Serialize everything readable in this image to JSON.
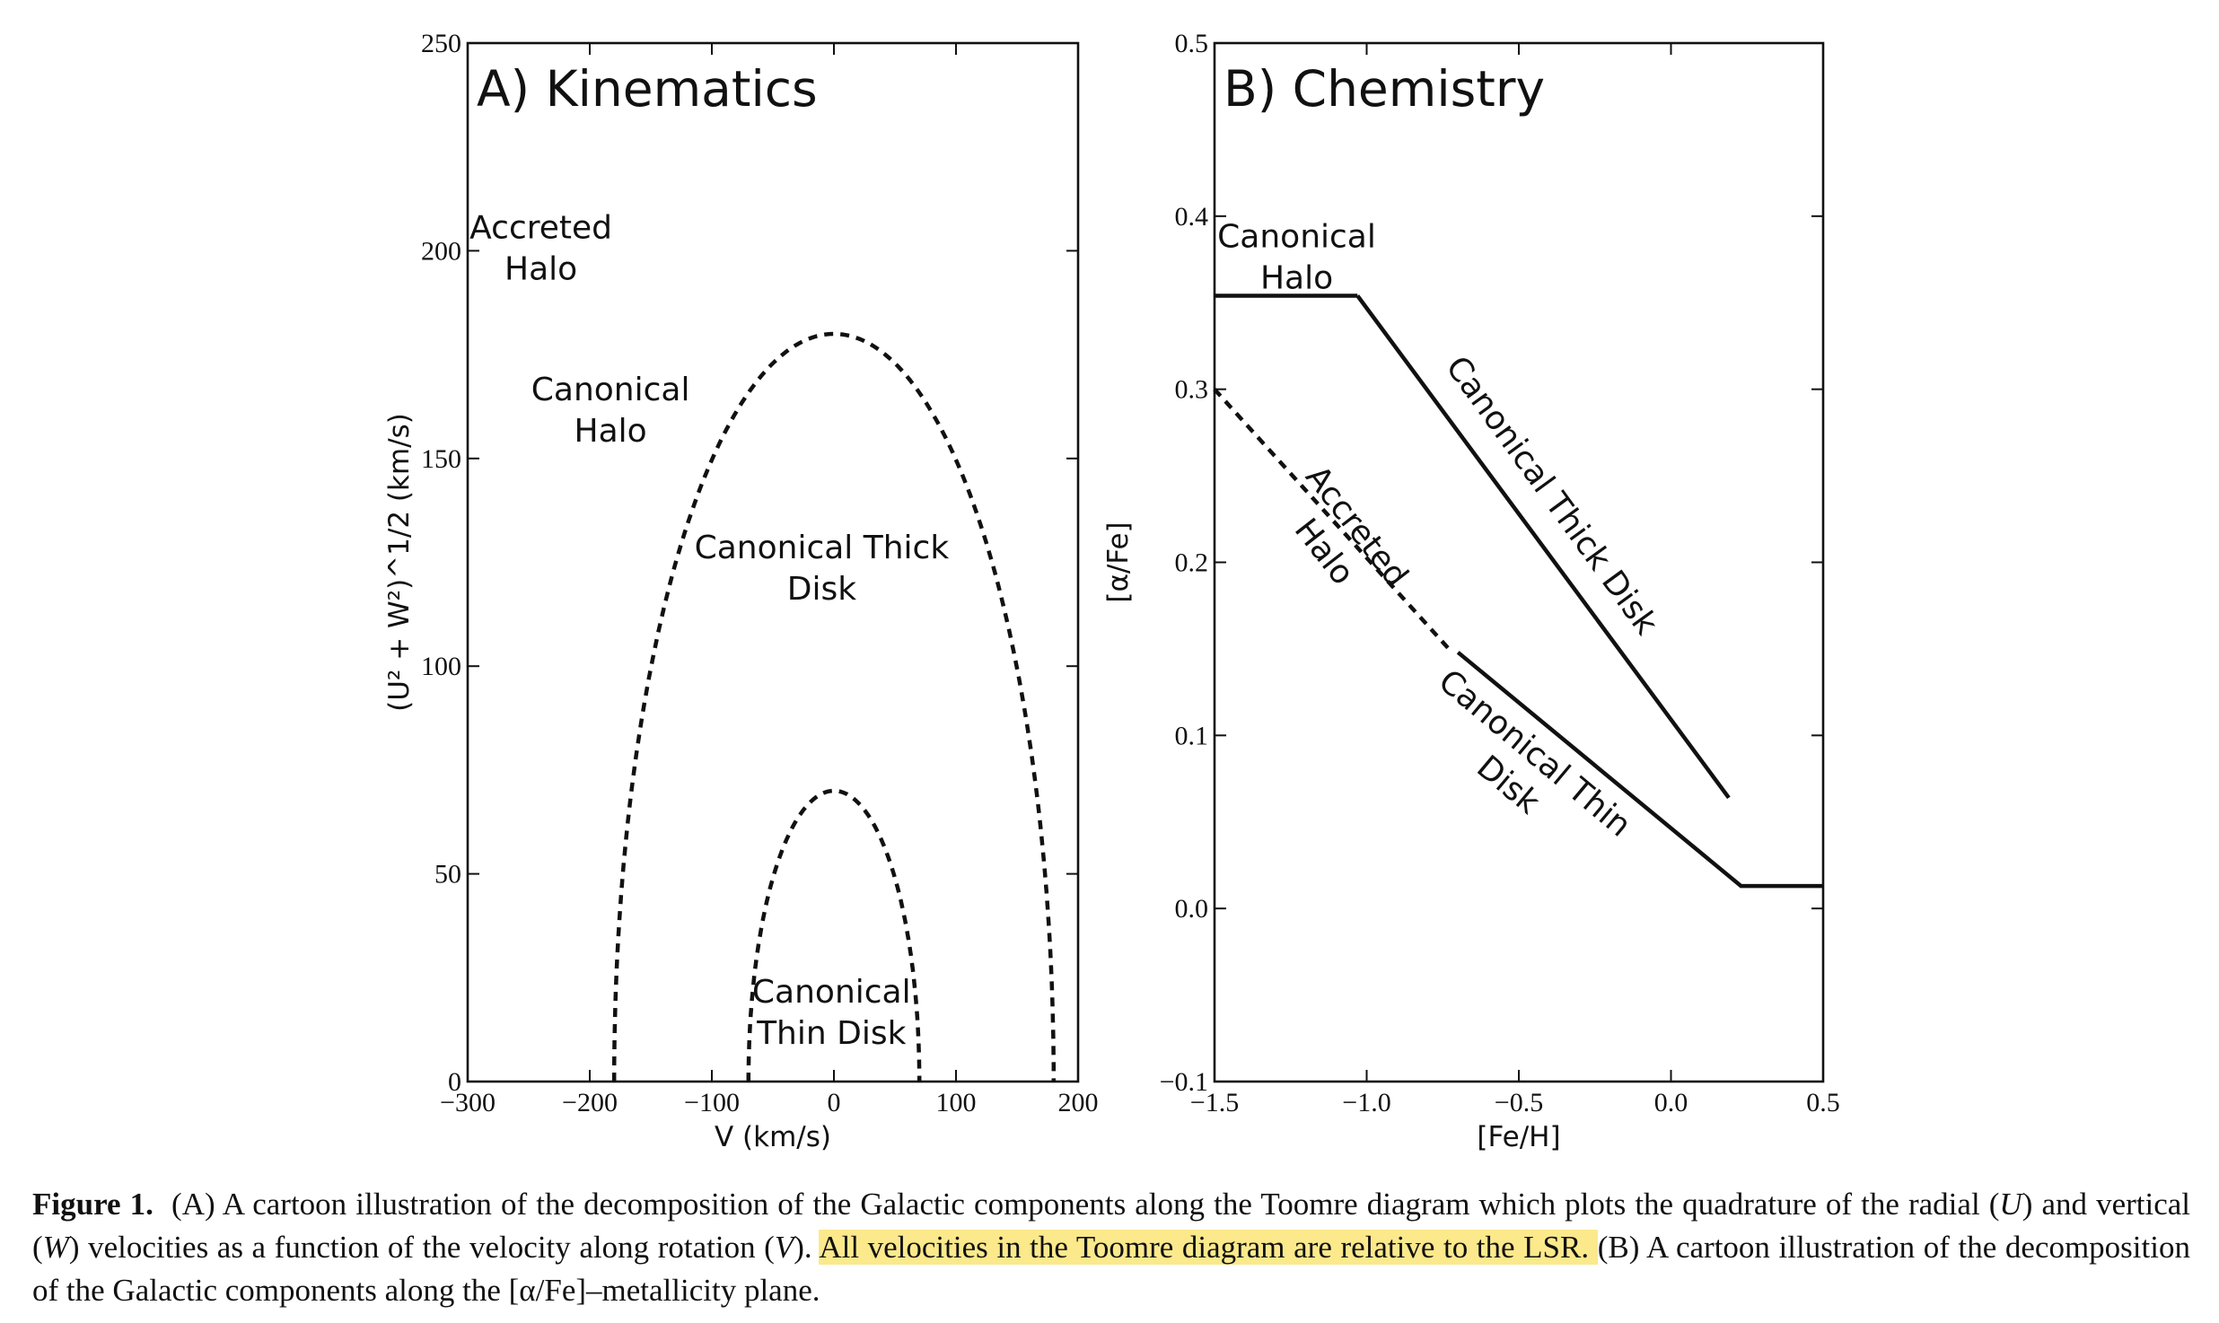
{
  "chart_data": [
    {
      "type": "line",
      "title": "A) Kinematics",
      "xlabel": "V (km/s)",
      "ylabel": "(U² + W²)^1/2 (km/s)",
      "xlim": [
        -300,
        200
      ],
      "ylim": [
        0,
        250
      ],
      "xticks": [
        -300,
        -200,
        -100,
        0,
        100,
        200
      ],
      "yticks": [
        0,
        50,
        100,
        150,
        200,
        250
      ],
      "xtick_labels": [
        "−300",
        "−200",
        "−100",
        "0",
        "100",
        "200"
      ],
      "ytick_labels": [
        "0",
        "50",
        "100",
        "150",
        "200",
        "250"
      ],
      "grid": false,
      "series": [
        {
          "style": "dashed",
          "shape": "semi-ellipse",
          "center_x": 0,
          "half_width": 180,
          "height": 180
        },
        {
          "style": "dashed",
          "shape": "semi-ellipse",
          "center_x": 0,
          "half_width": 70,
          "height": 70
        }
      ],
      "annotations": [
        {
          "lines": [
            "Accreted",
            "Halo"
          ],
          "x": -240,
          "y": 203
        },
        {
          "lines": [
            "Canonical",
            "Halo"
          ],
          "x": -183,
          "y": 164
        },
        {
          "lines": [
            "Canonical Thick",
            "Disk"
          ],
          "x": -10,
          "y": 126
        },
        {
          "lines": [
            "Canonical",
            "Thin Disk"
          ],
          "x": -2,
          "y": 19
        }
      ]
    },
    {
      "type": "line",
      "title": "B) Chemistry",
      "xlabel": "[Fe/H]",
      "ylabel": "[α/Fe]",
      "xlim": [
        -1.5,
        0.5
      ],
      "ylim": [
        -0.1,
        0.5
      ],
      "xticks": [
        -1.5,
        -1.0,
        -0.5,
        0.0,
        0.5
      ],
      "yticks": [
        -0.1,
        0.0,
        0.1,
        0.2,
        0.3,
        0.4,
        0.5
      ],
      "xtick_labels": [
        "−1.5",
        "−1.0",
        "−0.5",
        "0.0",
        "0.5"
      ],
      "ytick_labels": [
        "−0.1",
        "0.0",
        "0.1",
        "0.2",
        "0.3",
        "0.4",
        "0.5"
      ],
      "grid": false,
      "series": [
        {
          "style": "solid",
          "x": [
            -1.5,
            -1.03
          ],
          "y": [
            0.354,
            0.354
          ]
        },
        {
          "style": "solid",
          "x": [
            -1.03,
            0.19
          ],
          "y": [
            0.354,
            0.064
          ]
        },
        {
          "style": "dashed",
          "x": [
            -1.5,
            -0.73
          ],
          "y": [
            0.3,
            0.15
          ]
        },
        {
          "style": "solid",
          "x": [
            -0.7,
            0.23,
            0.5
          ],
          "y": [
            0.148,
            0.013,
            0.013
          ]
        }
      ],
      "annotations": [
        {
          "lines": [
            "Canonical",
            "Halo"
          ],
          "x": -1.23,
          "y": 0.382
        },
        {
          "lines": [
            "Canonical Thick Disk"
          ],
          "x": -0.42,
          "y": 0.235,
          "angle": 54
        },
        {
          "lines": [
            "Accreted",
            "Halo"
          ],
          "x": -1.06,
          "y": 0.217,
          "angle": 52
        },
        {
          "lines": [
            "Canonical Thin",
            "Disk"
          ],
          "x": -0.47,
          "y": 0.085,
          "angle": 40
        }
      ]
    }
  ],
  "caption": {
    "figure_number": "Figure 1.",
    "part1": "(A) A cartoon illustration of the decomposition of the Galactic components along the Toomre diagram which plots the quadrature of the radial (",
    "u_symbol": "U",
    "part2": ") and vertical (",
    "w_symbol": "W",
    "part3": ") velocities as a function of the velocity along rotation (",
    "v_symbol": "V",
    "part4": "). ",
    "highlighted": "All velocities in the Toomre diagram are relative to the LSR. ",
    "part5": "(B) A cartoon illustration of the decomposition of the Galactic components along the [α/Fe]–metallicity plane."
  }
}
